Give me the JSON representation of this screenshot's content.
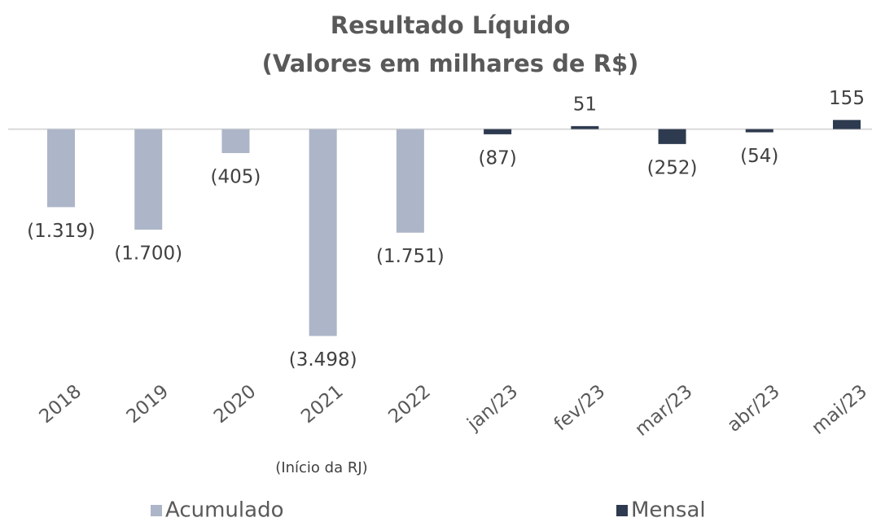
{
  "chart_data": {
    "type": "bar",
    "title": "Resultado Líquido",
    "subtitle": "(Valores em milhares de R$)",
    "categories": [
      "2018",
      "2019",
      "2020",
      "2021",
      "2022",
      "jan/23",
      "fev/23",
      "mar/23",
      "abr/23",
      "mai/23"
    ],
    "annotation": "(Início da RJ)",
    "series": [
      {
        "name": "Acumulado",
        "color": "#adb5c8",
        "values": [
          -1319,
          -1700,
          -405,
          -3498,
          -1751,
          null,
          null,
          null,
          null,
          null
        ],
        "value_labels": [
          "(1.319)",
          "(1.700)",
          "(405)",
          "(3.498)",
          "(1.751)",
          null,
          null,
          null,
          null,
          null
        ]
      },
      {
        "name": "Mensal",
        "color": "#2e3a4f",
        "values": [
          null,
          null,
          null,
          null,
          null,
          -87,
          51,
          -252,
          -54,
          155
        ],
        "value_labels": [
          null,
          null,
          null,
          null,
          null,
          "(87)",
          "51",
          "(252)",
          "(54)",
          "155"
        ]
      }
    ],
    "ylim": [
      -3600,
      600
    ]
  }
}
